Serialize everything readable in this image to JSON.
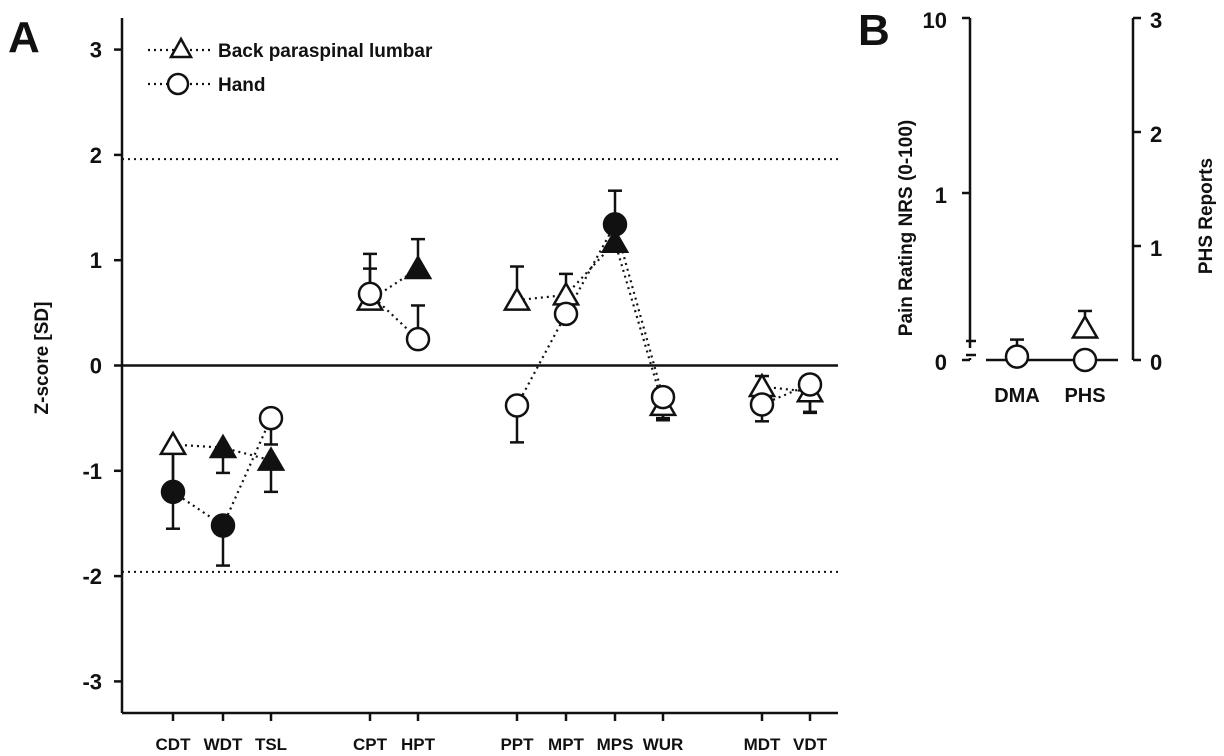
{
  "chart_data": [
    {
      "panel": "A",
      "type": "scatter",
      "ylabel": "Z-score [SD]",
      "ylim": [
        -3.3,
        3.3
      ],
      "yticks": [
        "3",
        "2",
        "1",
        "0",
        "-1",
        "-2",
        "-3"
      ],
      "ytick_values": [
        3,
        2,
        1,
        0,
        -1,
        -2,
        -3
      ],
      "reference_lines": [
        1.96,
        -1.96
      ],
      "categories": [
        "CDT",
        "WDT",
        "TSL",
        "CPT",
        "HPT",
        "PPT",
        "MPT",
        "MPS",
        "WUR",
        "MDT",
        "VDT"
      ],
      "legend": {
        "placement": "top-left",
        "entries": [
          {
            "label": "Back paraspinal lumbar",
            "marker": "triangle"
          },
          {
            "label": "Hand",
            "marker": "circle"
          }
        ]
      },
      "series": [
        {
          "name": "Back paraspinal lumbar",
          "marker": "triangle",
          "values": [
            -0.75,
            -0.78,
            -0.9,
            0.62,
            0.92,
            0.62,
            0.67,
            1.17,
            -0.38,
            -0.2,
            -0.25
          ],
          "filled": [
            false,
            true,
            true,
            false,
            true,
            false,
            false,
            true,
            false,
            false,
            false
          ],
          "err_dir": [
            "down",
            "down",
            "down",
            "up",
            "up",
            "up",
            "up",
            "up",
            "down",
            "down",
            "down"
          ],
          "err_len": [
            0.8,
            0.24,
            0.3,
            0.3,
            0.28,
            0.32,
            0.2,
            0.12,
            0.14,
            0.33,
            0.2
          ]
        },
        {
          "name": "Hand",
          "marker": "circle",
          "values": [
            -1.2,
            -1.52,
            -0.5,
            0.68,
            0.25,
            -0.38,
            0.49,
            1.34,
            -0.3,
            -0.37,
            -0.18
          ],
          "filled": [
            true,
            true,
            false,
            false,
            false,
            false,
            false,
            true,
            false,
            false,
            false
          ],
          "err_dir": [
            "up",
            "down",
            "down",
            "up",
            "up",
            "down",
            "up",
            "up",
            "down",
            "up",
            "down"
          ],
          "err_len": [
            0.38,
            0.38,
            0.25,
            0.38,
            0.32,
            0.35,
            0.15,
            0.32,
            0.2,
            0.27,
            0.26
          ]
        }
      ]
    },
    {
      "panel": "B",
      "type": "scatter",
      "categories": [
        "DMA",
        "PHS"
      ],
      "ylabel_left": "Pain Rating NRS (0-100)",
      "yticks_left": [
        "10",
        "1",
        "0"
      ],
      "ylabel_right": "PHS Reports",
      "yticks_right": [
        "3",
        "2",
        "1",
        "0"
      ],
      "ylim_right": [
        0,
        3
      ],
      "points": [
        {
          "category": "DMA",
          "axis": "left",
          "value": 0.02,
          "marker": "circle",
          "filled": false,
          "err_dir": "up",
          "err_len": 0.1
        },
        {
          "category": "PHS",
          "axis": "right",
          "value": 0.28,
          "marker": "triangle",
          "filled": false,
          "err_dir": "up",
          "err_len": 0.15
        },
        {
          "category": "PHS",
          "axis": "right",
          "value": 0,
          "marker": "circle",
          "filled": false,
          "err_dir": "none",
          "err_len": 0
        }
      ]
    }
  ]
}
